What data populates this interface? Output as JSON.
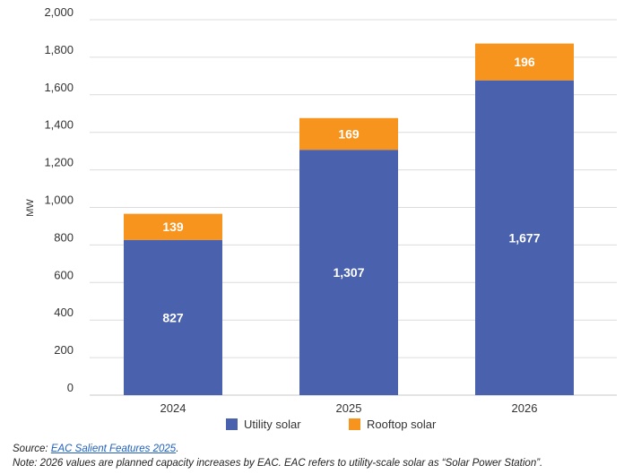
{
  "chart_data": {
    "type": "bar",
    "stacked": true,
    "categories": [
      "2024",
      "2025",
      "2026"
    ],
    "series": [
      {
        "name": "Utility solar",
        "values": [
          827,
          1307,
          1677
        ],
        "color": "#4a62ad"
      },
      {
        "name": "Rooftop solar",
        "values": [
          139,
          169,
          196
        ],
        "color": "#f7941d"
      }
    ],
    "data_labels": {
      "Utility solar": [
        "827",
        "1,307",
        "1,677"
      ],
      "Rooftop solar": [
        "139",
        "169",
        "196"
      ]
    },
    "ylabel": "MW",
    "ylim": [
      0,
      2000
    ],
    "yticks": [
      0,
      200,
      400,
      600,
      800,
      1000,
      1200,
      1400,
      1600,
      1800,
      2000
    ],
    "ytick_labels": [
      "0",
      "200",
      "400",
      "600",
      "800",
      "1,000",
      "1,200",
      "1,400",
      "1,600",
      "1,800",
      "2,000"
    ],
    "grid": true,
    "legend_position": "bottom"
  },
  "caption": {
    "source_prefix": "Source: ",
    "source_link": "EAC Salient Features 2025",
    "source_suffix": ".",
    "note": "Note: 2026 values are planned capacity increases by EAC. EAC refers to utility-scale solar as “Solar Power Station”."
  }
}
